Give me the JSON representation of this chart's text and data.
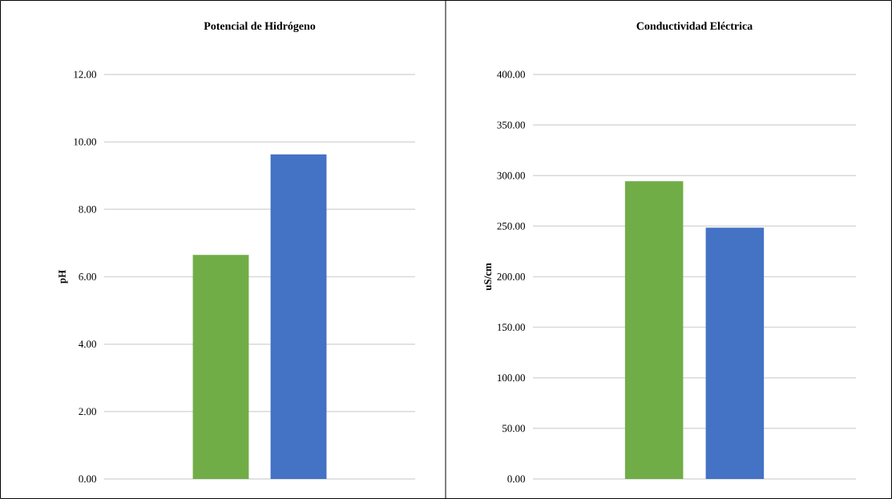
{
  "chart_data": [
    {
      "type": "bar",
      "title": "Potencial de Hidrógeno",
      "ylabel": "pH",
      "categories": [
        null,
        null
      ],
      "values": [
        6.65,
        9.63
      ],
      "colors": [
        "#70ad47",
        "#4472c4"
      ],
      "ylim": [
        0,
        12
      ],
      "yticks": [
        {
          "value": 0,
          "label": "0.00"
        },
        {
          "value": 2,
          "label": "2.00"
        },
        {
          "value": 4,
          "label": "4.00"
        },
        {
          "value": 6,
          "label": "6.00"
        },
        {
          "value": 8,
          "label": "8.00"
        },
        {
          "value": 10,
          "label": "10.00"
        },
        {
          "value": 12,
          "label": "12.00"
        }
      ],
      "grid": "y"
    },
    {
      "type": "bar",
      "title": "Conductividad Eléctrica",
      "ylabel": "uS/cm",
      "categories": [
        null,
        null
      ],
      "values": [
        294.4,
        248.6
      ],
      "colors": [
        "#70ad47",
        "#4472c4"
      ],
      "ylim": [
        0,
        400
      ],
      "yticks": [
        {
          "value": 0,
          "label": "0.00"
        },
        {
          "value": 50,
          "label": "50.00"
        },
        {
          "value": 100,
          "label": "100.00"
        },
        {
          "value": 150,
          "label": "150.00"
        },
        {
          "value": 200,
          "label": "200.00"
        },
        {
          "value": 250,
          "label": "250.00"
        },
        {
          "value": 300,
          "label": "300.00"
        },
        {
          "value": 350,
          "label": "350.00"
        },
        {
          "value": 400,
          "label": "400.00"
        }
      ],
      "grid": "y"
    }
  ]
}
